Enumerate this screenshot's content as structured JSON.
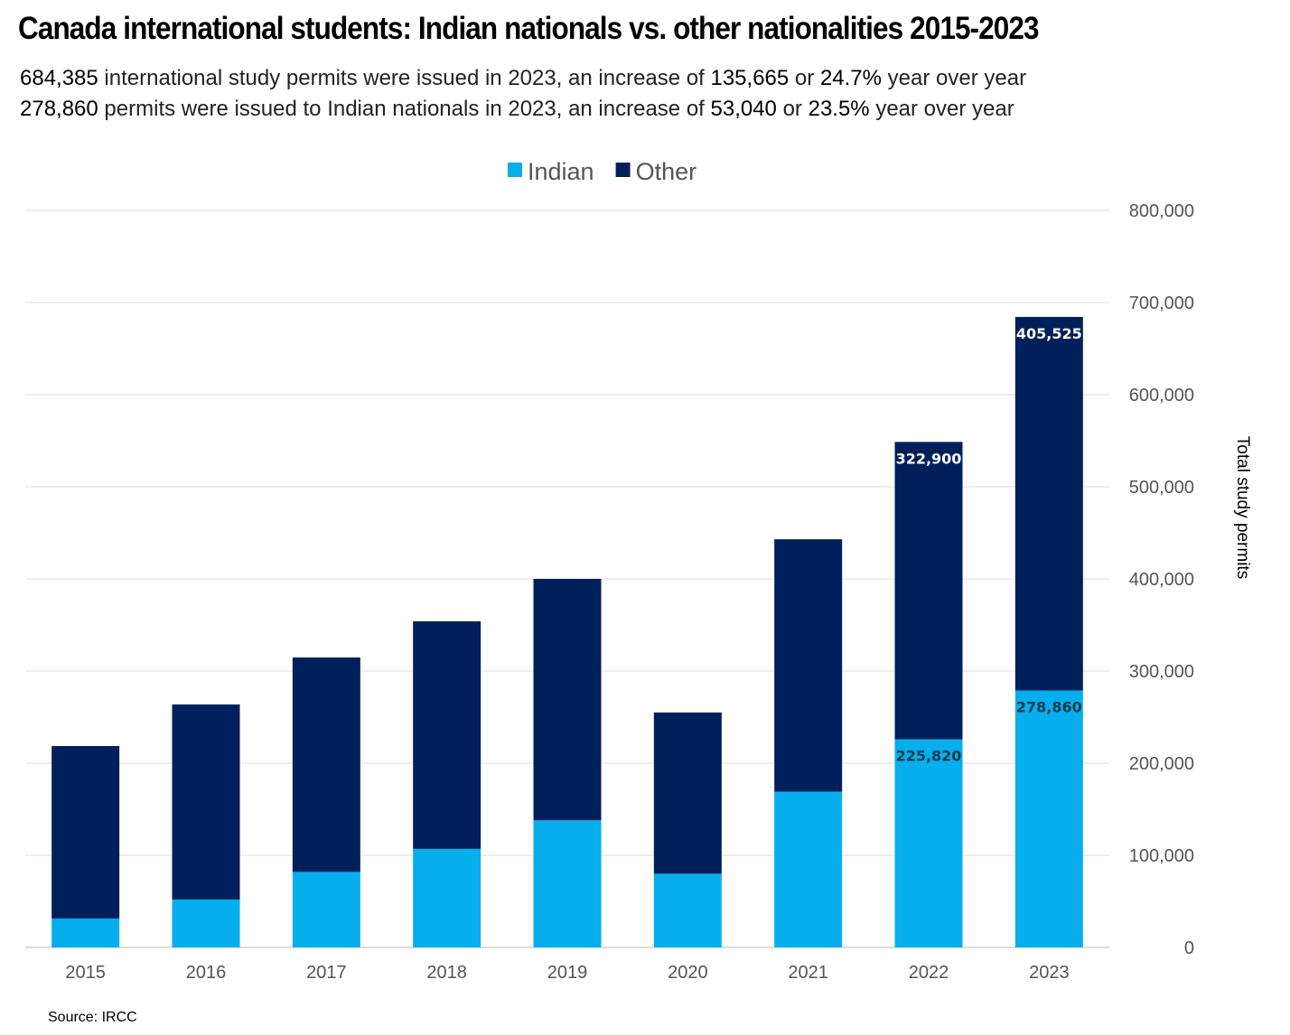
{
  "title": "Canada international students: Indian nationals vs. other nationalities 2015-2023",
  "subtitle": {
    "line1": [
      "684,385",
      " international study permits were issued in 2023, an increase of ",
      "135,665",
      " or ",
      "24.7%",
      " year over year"
    ],
    "line2": [
      "278,860",
      " permits were issued to Indian nationals in 2023, an increase of ",
      "53,040",
      " or ",
      "23.5%",
      " year over year"
    ]
  },
  "source": "Source: IRCC",
  "chart_data": {
    "type": "bar",
    "stacked": true,
    "categories": [
      "2015",
      "2016",
      "2017",
      "2018",
      "2019",
      "2020",
      "2021",
      "2022",
      "2023"
    ],
    "series": [
      {
        "name": "Indian",
        "color": "#06AEEC",
        "values": [
          31400,
          52000,
          82000,
          107000,
          138000,
          80000,
          169000,
          225820,
          278860
        ]
      },
      {
        "name": "Other",
        "color": "#00205B",
        "values": [
          187200,
          211700,
          232700,
          247000,
          262000,
          175000,
          274000,
          322900,
          405525
        ]
      }
    ],
    "data_labels": {
      "Indian": [
        "",
        "",
        "",
        "",
        "",
        "",
        "",
        "225,820",
        "278,860"
      ],
      "Other": [
        "",
        "",
        "",
        "",
        "",
        "",
        "",
        "322,900",
        "405,525"
      ]
    },
    "ylabel": "Total study permits",
    "xlabel": "",
    "ylim": [
      0,
      800000
    ],
    "yticks": [
      "0",
      "100,000",
      "200,000",
      "300,000",
      "400,000",
      "500,000",
      "600,000",
      "700,000",
      "800,000"
    ],
    "ytick_values": [
      0,
      100000,
      200000,
      300000,
      400000,
      500000,
      600000,
      700000,
      800000
    ],
    "y_axis_side": "right",
    "grid": true,
    "legend": "top-center"
  }
}
